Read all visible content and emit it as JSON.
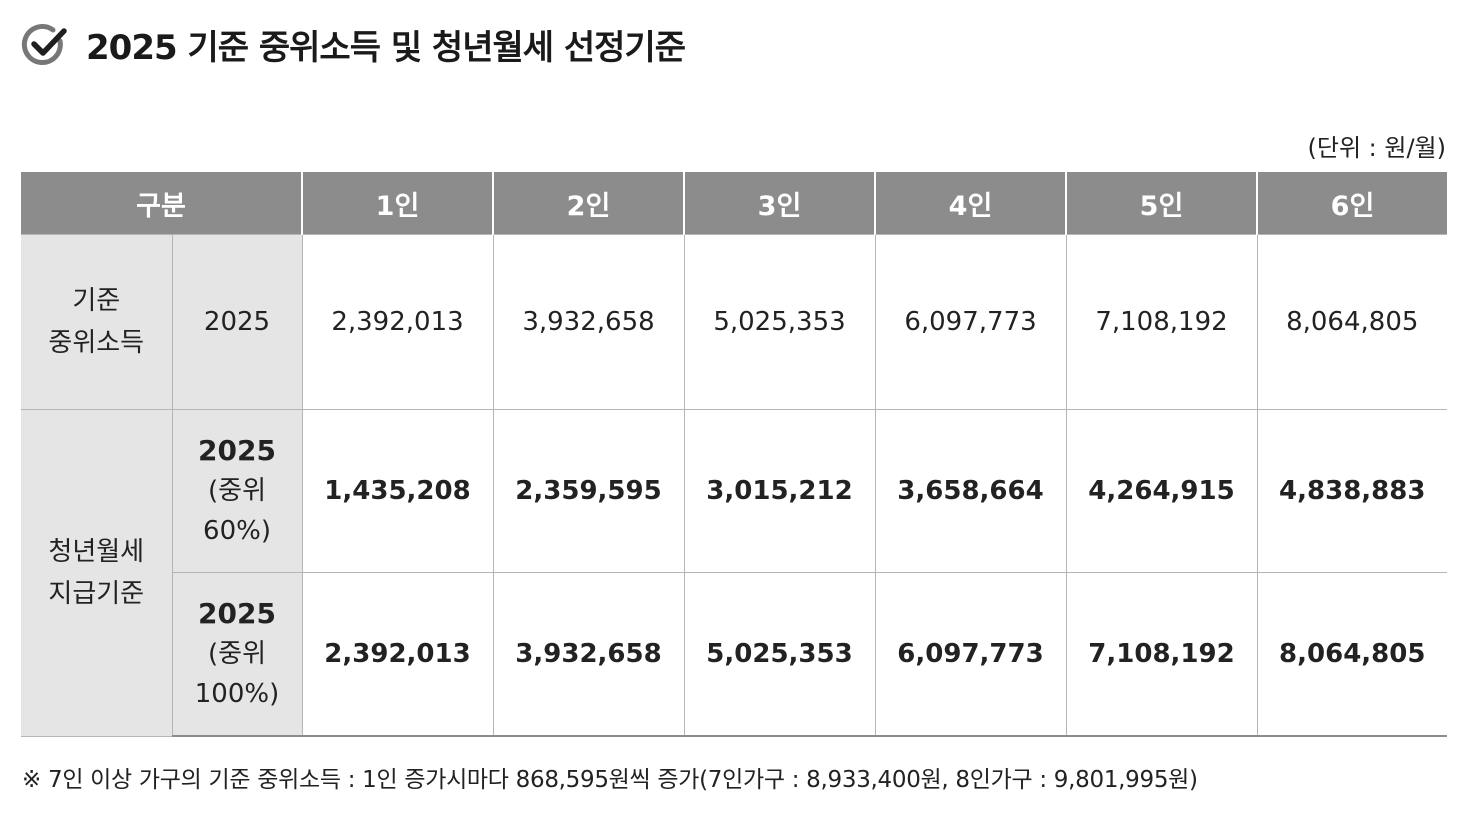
{
  "title": "2025 기준 중위소득 및 청년월세 선정기준",
  "unit_note": "(단위 : 원/월)",
  "table": {
    "headers": [
      "구분",
      "1인",
      "2인",
      "3인",
      "4인",
      "5인",
      "6인"
    ],
    "median_income": {
      "category": [
        "기준",
        "중위소득"
      ],
      "sub": "2025",
      "values": [
        "2,392,013",
        "3,932,658",
        "5,025,353",
        "6,097,773",
        "7,108,192",
        "8,064,805"
      ]
    },
    "youth_rent": {
      "category": [
        "청년월세",
        "지급기준"
      ],
      "rows": [
        {
          "sub_year": "2025",
          "sub_pct": [
            "(중위",
            "60%)"
          ],
          "values": [
            "1,435,208",
            "2,359,595",
            "3,015,212",
            "3,658,664",
            "4,264,915",
            "4,838,883"
          ]
        },
        {
          "sub_year": "2025",
          "sub_pct": [
            "(중위",
            "100%)"
          ],
          "values": [
            "2,392,013",
            "3,932,658",
            "5,025,353",
            "6,097,773",
            "7,108,192",
            "8,064,805"
          ]
        }
      ]
    }
  },
  "footnote": "※ 7인 이상 가구의 기준 중위소득 : 1인 증가시마다 868,595원씩 증가(7인가구 : 8,933,400원, 8인가구 : 9,801,995원)",
  "icons": {
    "title_icon": "check-circle-icon"
  },
  "colors": {
    "header_bg": "#8c8c8c",
    "category_bg": "#e5e5e5"
  }
}
